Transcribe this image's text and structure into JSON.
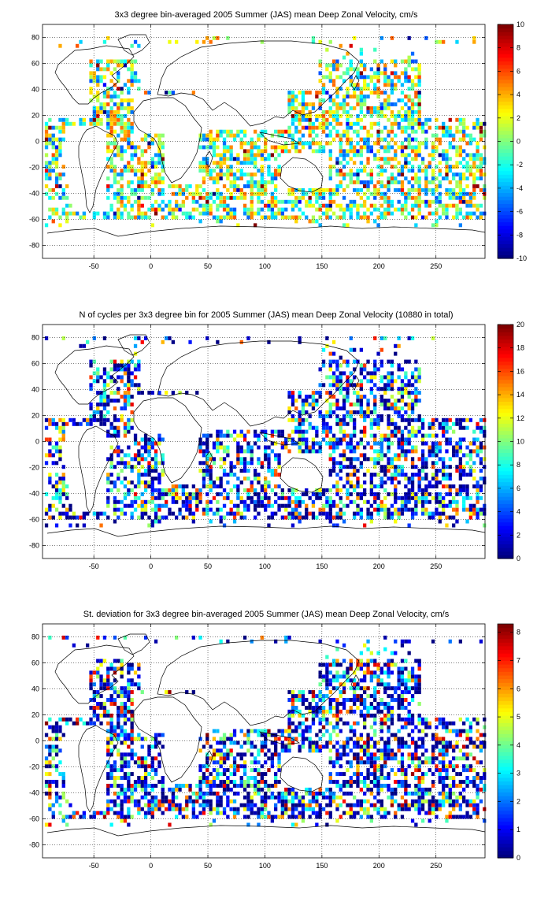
{
  "page": {
    "background": "#ffffff"
  },
  "colormap": "jet",
  "chart_data": [
    {
      "type": "heatmap",
      "title": "3x3 degree bin-averaged 2005 Summer (JAS) mean Deep Zonal Velocity, cm/s",
      "xlim": [
        -95,
        293
      ],
      "ylim": [
        -90,
        90
      ],
      "xticks": [
        -50,
        0,
        50,
        100,
        150,
        200,
        250
      ],
      "yticks": [
        -80,
        -60,
        -40,
        -20,
        0,
        20,
        40,
        60,
        80
      ],
      "bin_size_deg": 3,
      "grid": true,
      "colorbar": {
        "min": -10,
        "max": 10,
        "ticks": [
          -10,
          -8,
          -6,
          -4,
          -2,
          0,
          2,
          4,
          6,
          8,
          10
        ]
      }
    },
    {
      "type": "heatmap",
      "title": "N of cycles per 3x3 degree bin for 2005 Summer (JAS) mean Deep Zonal Velocity (10880 in total)",
      "xlim": [
        -95,
        293
      ],
      "ylim": [
        -90,
        90
      ],
      "xticks": [
        -50,
        0,
        50,
        100,
        150,
        200,
        250
      ],
      "yticks": [
        -80,
        -60,
        -40,
        -20,
        0,
        20,
        40,
        60,
        80
      ],
      "bin_size_deg": 3,
      "grid": true,
      "colorbar": {
        "min": 0,
        "max": 20,
        "ticks": [
          0,
          2,
          4,
          6,
          8,
          10,
          12,
          14,
          16,
          18,
          20
        ]
      }
    },
    {
      "type": "heatmap",
      "title": "St. deviation for 3x3 degree bin-averaged 2005 Summer (JAS) mean Deep Zonal Velocity, cm/s",
      "xlim": [
        -95,
        293
      ],
      "ylim": [
        -90,
        90
      ],
      "xticks": [
        -50,
        0,
        50,
        100,
        150,
        200,
        250
      ],
      "yticks": [
        -80,
        -60,
        -40,
        -20,
        0,
        20,
        40,
        60,
        80
      ],
      "bin_size_deg": 3,
      "grid": true,
      "colorbar": {
        "min": 0,
        "max": 8.3,
        "ticks": [
          0,
          1,
          2,
          3,
          4,
          5,
          6,
          7,
          8
        ]
      }
    }
  ]
}
